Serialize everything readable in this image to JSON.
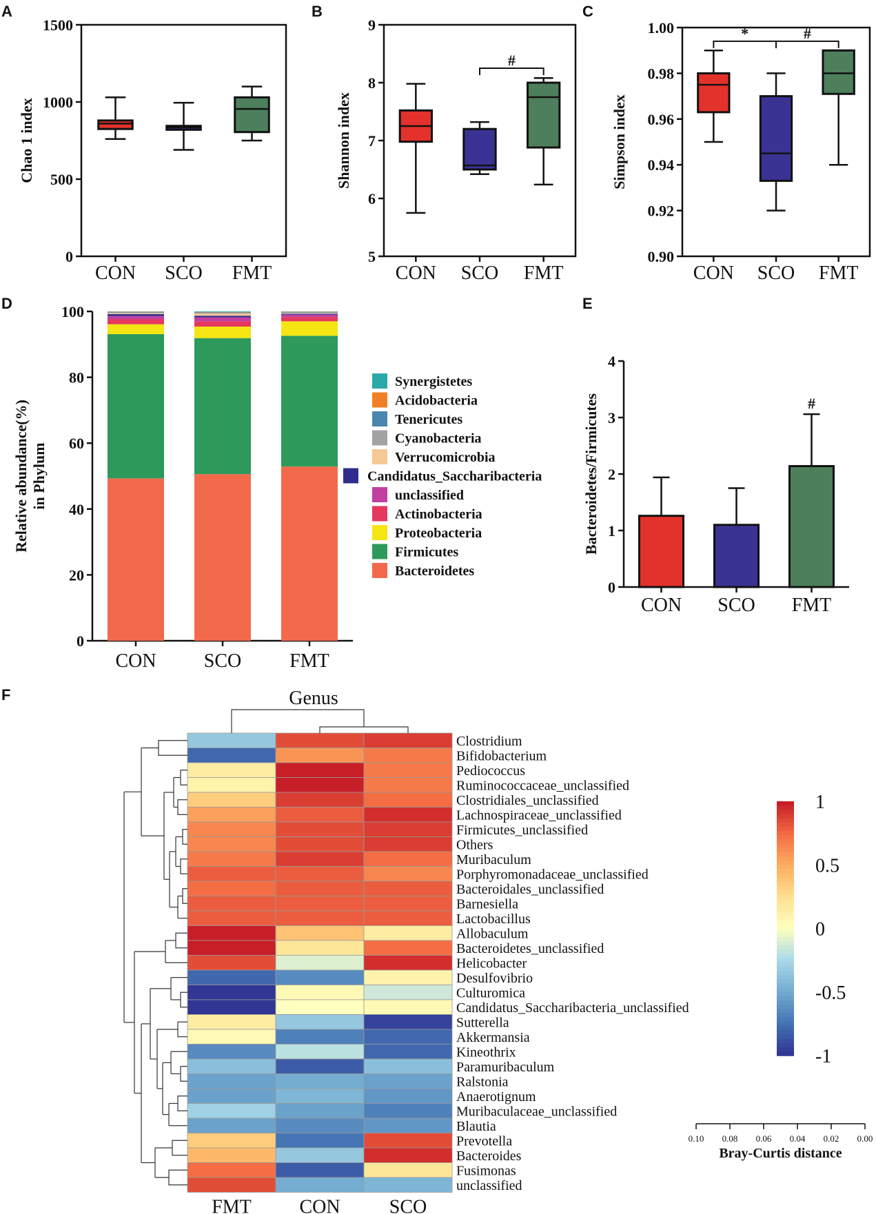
{
  "chart_data": [
    {
      "panel": "A",
      "type": "box",
      "ylabel": "Chao 1 index",
      "yticks": [
        0,
        500,
        1000,
        1500
      ],
      "ylim": [
        0,
        1500
      ],
      "categories": [
        "CON",
        "SCO",
        "FMT"
      ],
      "boxes": [
        {
          "min": 760,
          "q1": 825,
          "median": 860,
          "q3": 880,
          "max": 1030,
          "color": "#e3322b"
        },
        {
          "min": 690,
          "q1": 820,
          "median": 835,
          "q3": 845,
          "max": 995,
          "color": "#3a3394"
        },
        {
          "min": 750,
          "q1": 805,
          "median": 955,
          "q3": 1030,
          "max": 1100,
          "color": "#4d7f5c"
        }
      ],
      "annotations": []
    },
    {
      "panel": "B",
      "type": "box",
      "ylabel": "Shannon index",
      "yticks": [
        5,
        6,
        7,
        8,
        9
      ],
      "ylim": [
        5,
        9
      ],
      "categories": [
        "CON",
        "SCO",
        "FMT"
      ],
      "boxes": [
        {
          "min": 5.75,
          "q1": 6.98,
          "median": 7.25,
          "q3": 7.52,
          "max": 7.98,
          "color": "#e3322b"
        },
        {
          "min": 6.42,
          "q1": 6.5,
          "median": 6.57,
          "q3": 7.2,
          "max": 7.32,
          "color": "#3a3394"
        },
        {
          "min": 6.24,
          "q1": 6.88,
          "median": 7.75,
          "q3": 8.0,
          "max": 8.08,
          "color": "#4d7f5c"
        }
      ],
      "annotations": [
        {
          "from": 1,
          "to": 2,
          "y": 8.25,
          "label": "#"
        }
      ]
    },
    {
      "panel": "C",
      "type": "box",
      "ylabel": "Simpson index",
      "yticks": [
        0.9,
        0.92,
        0.94,
        0.96,
        0.98,
        1.0
      ],
      "ytick_labels": [
        "0.90",
        "0.92",
        "0.94",
        "0.96",
        "0.98",
        "1.00"
      ],
      "ylim": [
        0.9,
        1.0
      ],
      "categories": [
        "CON",
        "SCO",
        "FMT"
      ],
      "boxes": [
        {
          "min": 0.95,
          "q1": 0.963,
          "median": 0.975,
          "q3": 0.98,
          "max": 0.99,
          "color": "#e3322b"
        },
        {
          "min": 0.92,
          "q1": 0.933,
          "median": 0.945,
          "q3": 0.97,
          "max": 0.98,
          "color": "#3a3394"
        },
        {
          "min": 0.94,
          "q1": 0.971,
          "median": 0.98,
          "q3": 0.99,
          "max": 0.99,
          "color": "#4d7f5c"
        }
      ],
      "annotations": [
        {
          "from": 0,
          "to": 1,
          "y": 0.994,
          "label": "*"
        },
        {
          "from": 1,
          "to": 2,
          "y": 0.994,
          "label": "#"
        }
      ]
    },
    {
      "panel": "D",
      "type": "stacked-bar",
      "ylabel": "Relative abundance(%) in Phylum",
      "ylabel_lines": [
        "Relative abundance(%)",
        "in Phylum"
      ],
      "yticks": [
        0,
        20,
        40,
        60,
        80,
        100
      ],
      "ylim": [
        0,
        100
      ],
      "categories": [
        "CON",
        "SCO",
        "FMT"
      ],
      "series": [
        {
          "name": "Bacteroidetes",
          "color": "#f26a4b",
          "values": [
            49.3,
            50.6,
            52.9
          ]
        },
        {
          "name": "Firmicutes",
          "color": "#2d9a5b",
          "values": [
            43.8,
            41.3,
            39.7
          ]
        },
        {
          "name": "Proteobacteria",
          "color": "#f4e513",
          "values": [
            3.0,
            3.5,
            4.4
          ]
        },
        {
          "name": "Actinobacteria",
          "color": "#e6385f",
          "values": [
            1.5,
            1.6,
            1.3
          ]
        },
        {
          "name": "unclassified",
          "color": "#c13fa0",
          "values": [
            1.0,
            1.2,
            0.7
          ]
        },
        {
          "name": "Candidatus_Saccharibacteria",
          "color": "#302d8c",
          "values": [
            0.6,
            0.5,
            0.3
          ]
        },
        {
          "name": "Verrucomicrobia",
          "color": "#f6c894",
          "values": [
            0.3,
            0.6,
            0.2
          ]
        },
        {
          "name": "Cyanobacteria",
          "color": "#a3a3a3",
          "values": [
            0.2,
            0.3,
            0.2
          ]
        },
        {
          "name": "Tenericutes",
          "color": "#4a86ad",
          "values": [
            0.1,
            0.1,
            0.1
          ]
        },
        {
          "name": "Acidobacteria",
          "color": "#f07f25",
          "values": [
            0.1,
            0.1,
            0.1
          ]
        },
        {
          "name": "Synergistetes",
          "color": "#2aa9a8",
          "values": [
            0.1,
            0.2,
            0.1
          ]
        }
      ]
    },
    {
      "panel": "E",
      "type": "bar",
      "ylabel": "Bacteroidetes/Firmicutes",
      "yticks": [
        0,
        1,
        2,
        3,
        4
      ],
      "ylim": [
        0,
        4
      ],
      "categories": [
        "CON",
        "SCO",
        "FMT"
      ],
      "values": [
        1.26,
        1.1,
        2.14
      ],
      "errors": [
        0.68,
        0.65,
        0.92
      ],
      "colors": [
        "#e3322b",
        "#3a3394",
        "#4d7f5c"
      ],
      "annotations": [
        {
          "index": 2,
          "label": "#"
        }
      ]
    },
    {
      "panel": "F",
      "type": "heatmap",
      "title": "Genus",
      "columns": [
        "FMT",
        "CON",
        "SCO"
      ],
      "rows": [
        "Clostridium",
        "Bifidobacterium",
        "Pediococcus",
        "Ruminococcaceae_unclassified",
        "Clostridiales_unclassified",
        "Lachnospiraceae_unclassified",
        "Firmicutes_unclassified",
        "Others",
        "Muribaculum",
        "Porphyromonadaceae_unclassified",
        "Bacteroidales_unclassified",
        "Barnesiella",
        "Lactobacillus",
        "Allobaculum",
        "Bacteroidetes_unclassified",
        "Helicobacter",
        "Desulfovibrio",
        "Culturomica",
        "Candidatus_Saccharibacteria_unclassified",
        "Sutterella",
        "Akkermansia",
        "Kineothrix",
        "Paramuribaculum",
        "Ralstonia",
        "Anaerotignum",
        "Muribaculaceae_unclassified",
        "Blautia",
        "Prevotella",
        "Bacteroides",
        "Fusimonas",
        "unclassified"
      ],
      "values": [
        [
          -0.35,
          0.85,
          0.9
        ],
        [
          -0.8,
          0.6,
          0.7
        ],
        [
          0.15,
          1.0,
          0.7
        ],
        [
          0.1,
          1.0,
          0.7
        ],
        [
          0.35,
          0.9,
          0.75
        ],
        [
          0.55,
          0.8,
          0.95
        ],
        [
          0.65,
          0.85,
          0.9
        ],
        [
          0.65,
          0.85,
          0.9
        ],
        [
          0.7,
          0.9,
          0.75
        ],
        [
          0.8,
          0.8,
          0.65
        ],
        [
          0.75,
          0.8,
          0.8
        ],
        [
          0.8,
          0.8,
          0.8
        ],
        [
          0.8,
          0.8,
          0.8
        ],
        [
          1.0,
          0.4,
          0.15
        ],
        [
          1.0,
          0.2,
          0.75
        ],
        [
          0.85,
          -0.1,
          0.95
        ],
        [
          -0.8,
          -0.65,
          0.1
        ],
        [
          -1.0,
          0.05,
          -0.15
        ],
        [
          -1.0,
          0.0,
          0.05
        ],
        [
          0.15,
          -0.35,
          -0.95
        ],
        [
          0.05,
          -0.7,
          -0.8
        ],
        [
          -0.65,
          -0.2,
          -0.8
        ],
        [
          -0.4,
          -0.85,
          -0.4
        ],
        [
          -0.55,
          -0.5,
          -0.55
        ],
        [
          -0.55,
          -0.45,
          -0.6
        ],
        [
          -0.3,
          -0.55,
          -0.7
        ],
        [
          -0.55,
          -0.65,
          -0.6
        ],
        [
          0.35,
          -0.75,
          0.85
        ],
        [
          0.45,
          -0.35,
          0.95
        ],
        [
          0.75,
          -0.85,
          0.2
        ],
        [
          0.85,
          -0.5,
          -0.45
        ]
      ],
      "colorbar": {
        "ticks": [
          1,
          0.5,
          0,
          -0.5,
          -1
        ],
        "labels": [
          "1",
          "0.5",
          "0",
          "-0.5",
          "-1"
        ]
      },
      "distance_axis": {
        "label": "Bray-Curtis distance",
        "ticks": [
          "0.10",
          "0.08",
          "0.06",
          "0.04",
          "0.02",
          "0.00"
        ]
      }
    }
  ],
  "panel_letters": [
    "A",
    "B",
    "C",
    "D",
    "E",
    "F"
  ]
}
